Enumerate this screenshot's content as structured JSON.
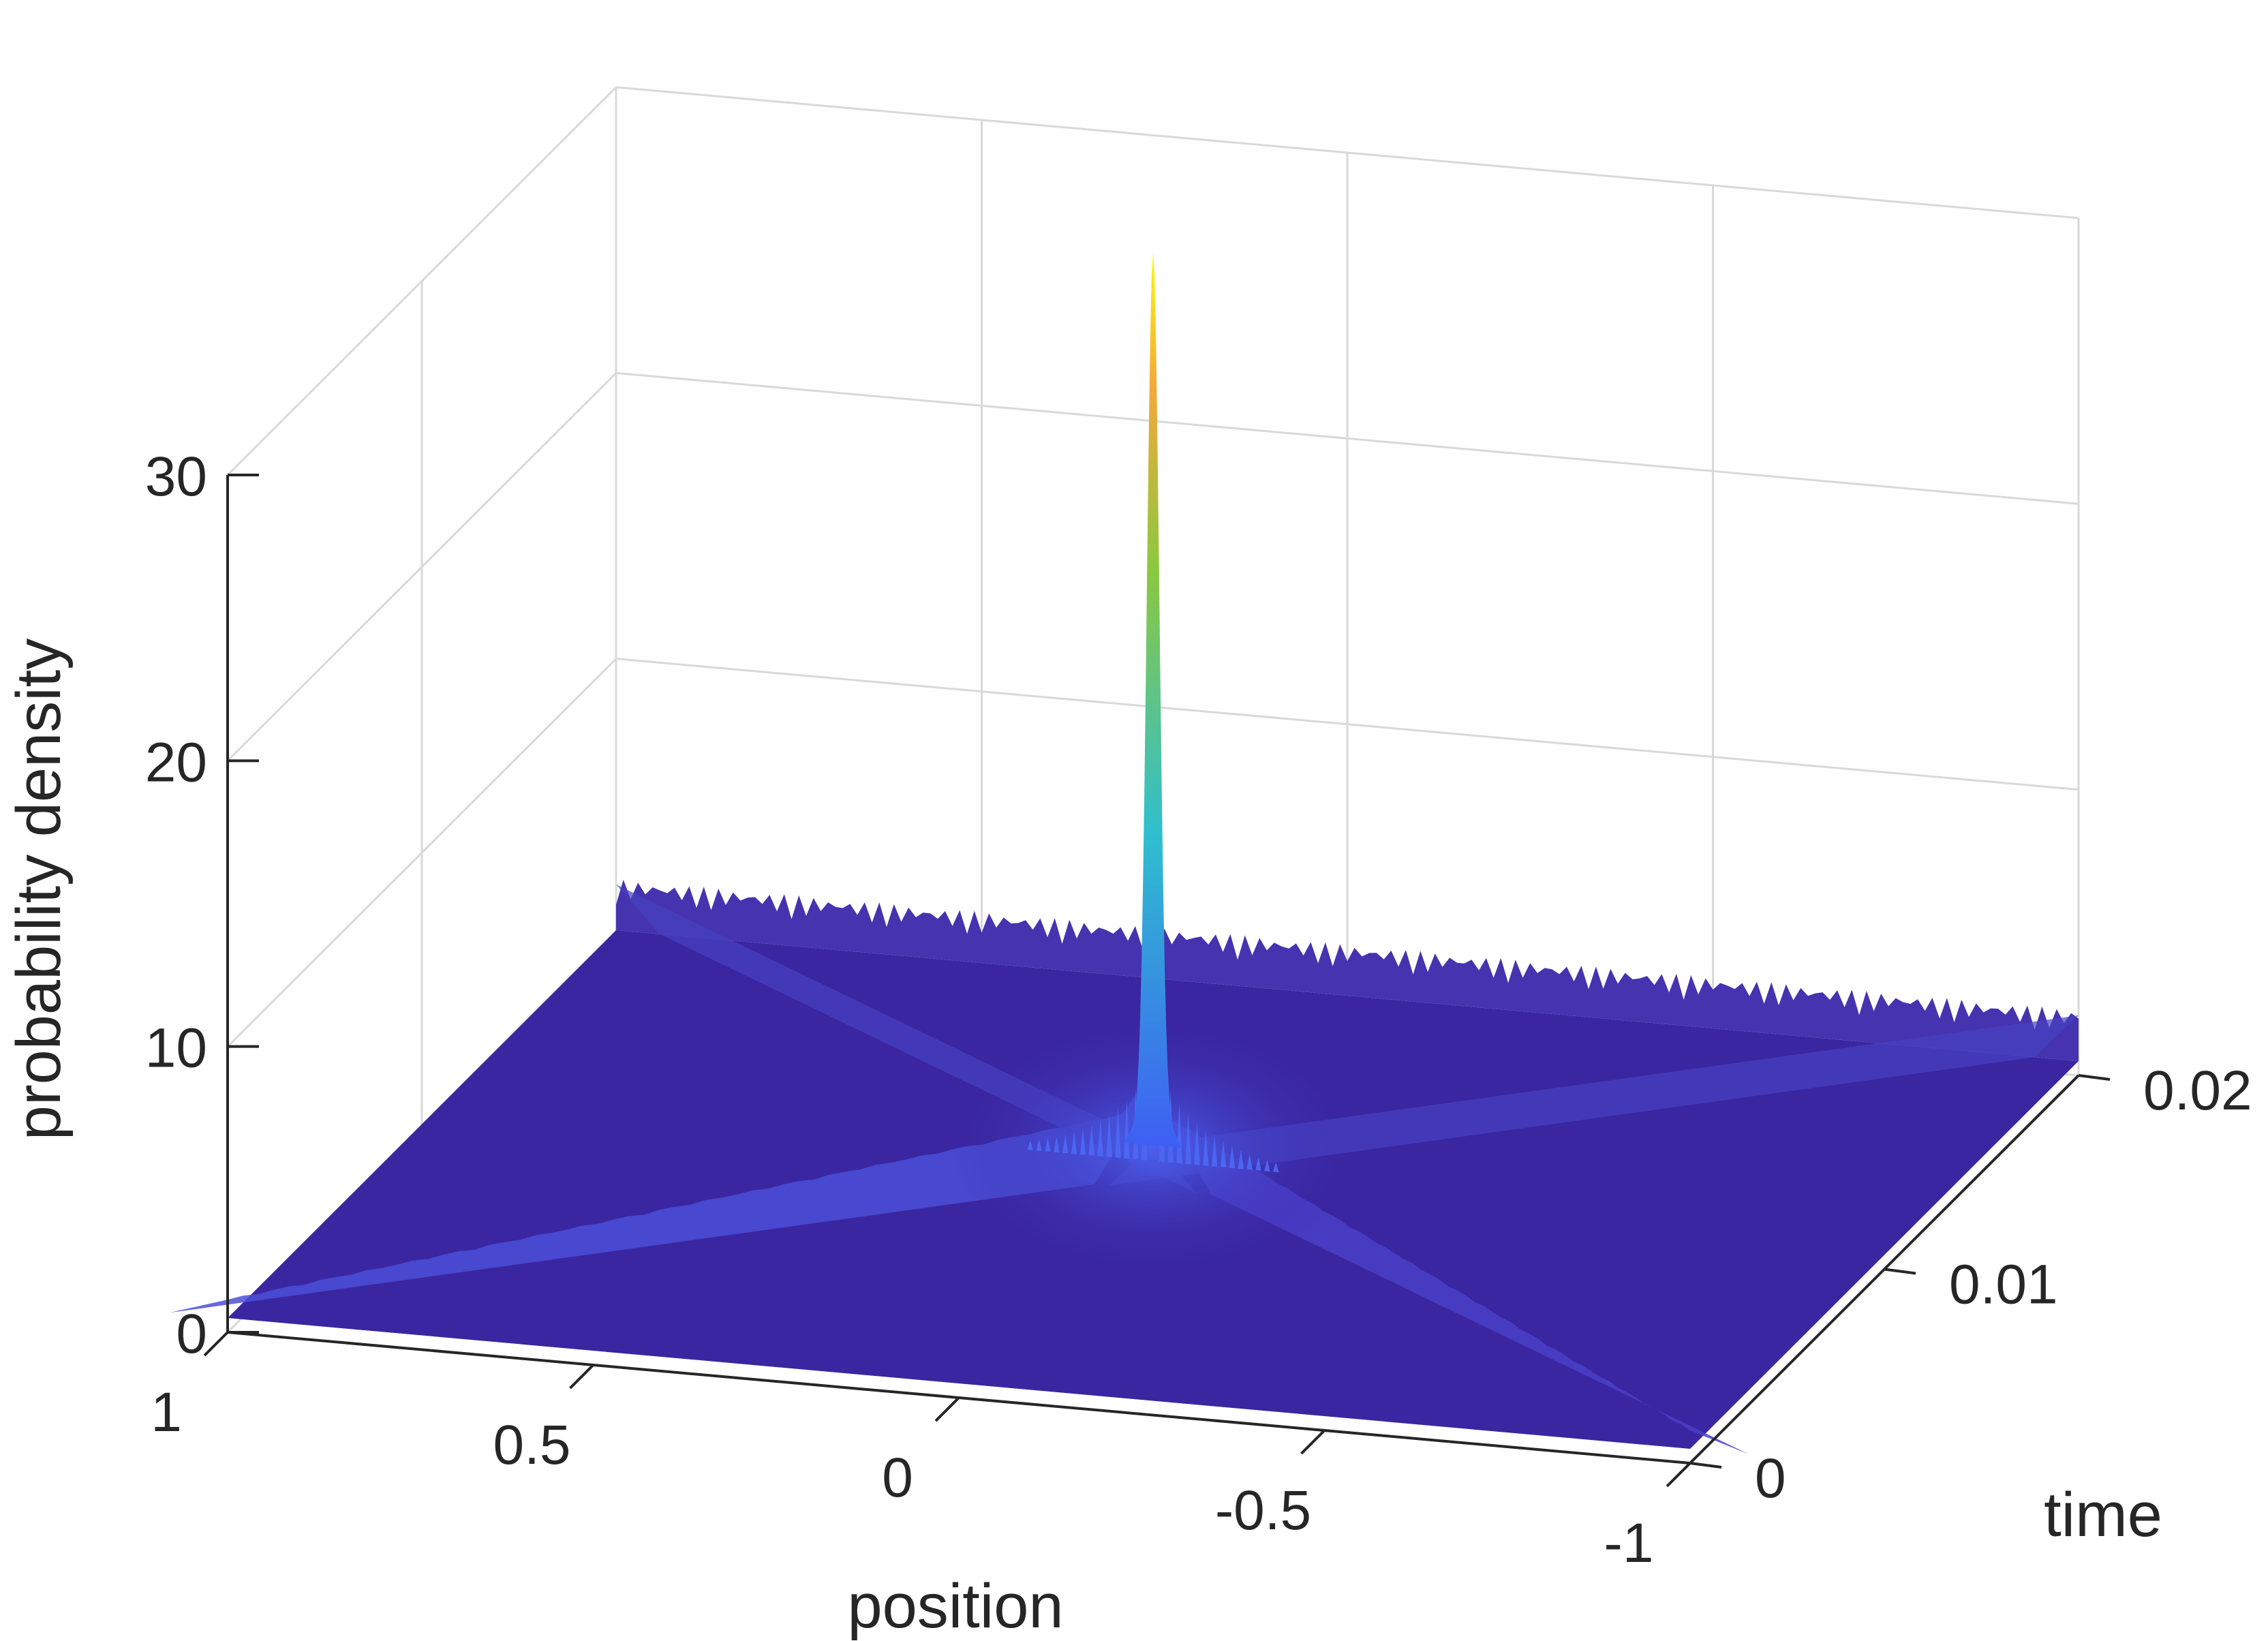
{
  "chart_data": {
    "type": "surface",
    "title": "",
    "xlabel": "position",
    "ylabel": "time",
    "zlabel": "probability density",
    "xlim": [
      -1,
      1
    ],
    "ylim": [
      0,
      0.02
    ],
    "zlim": [
      0,
      30
    ],
    "x_ticks": [
      1,
      0.5,
      0,
      -0.5,
      -1
    ],
    "y_ticks": [
      0,
      0.01,
      0.02
    ],
    "z_ticks": [
      0,
      10,
      20,
      30
    ],
    "x_tick_labels": [
      "1",
      "0.5",
      "0",
      "-0.5",
      "-1"
    ],
    "y_tick_labels": [
      "0",
      "0.01",
      "0.02"
    ],
    "z_tick_labels": [
      "0",
      "10",
      "20",
      "30"
    ],
    "grid": true,
    "colormap": "parula",
    "peak": {
      "position": 0.0,
      "time": 0.01,
      "probability_density": 30
    },
    "baseline_density": 0.5,
    "colors": {
      "surface_low": "#3e26a8",
      "surface_mid": "#2fbfcf",
      "surface_high": "#f9fb0e"
    }
  }
}
